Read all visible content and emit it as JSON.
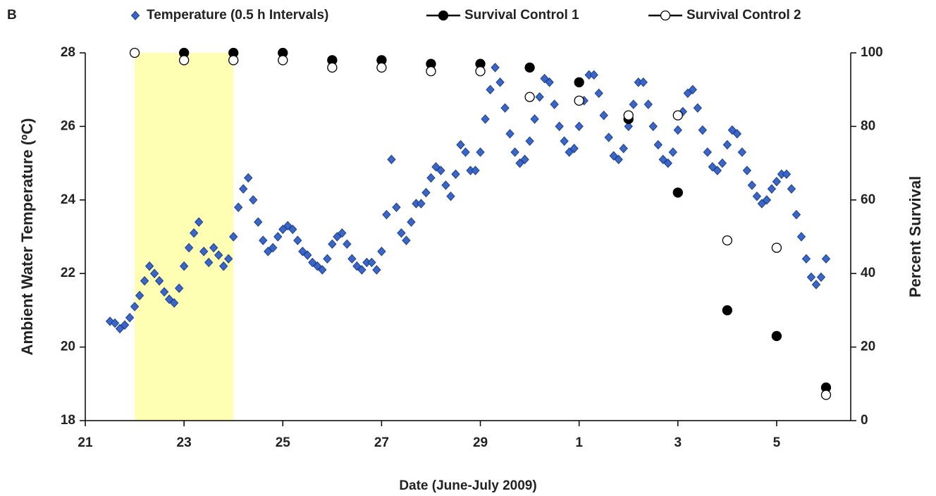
{
  "chart_data": {
    "type": "scatter",
    "panel_label": "B",
    "x_label": "Date  (June-July 2009)",
    "y_label": "Ambient  Water  Temperature (ºC)",
    "y2_label": "Percent  Survival",
    "legend": "top",
    "xlim": [
      21,
      36.5
    ],
    "xticks": [
      21,
      23,
      25,
      27,
      29,
      {
        "value": 31,
        "label": "1"
      },
      {
        "value": 33,
        "label": "3"
      },
      {
        "value": 35,
        "label": "5"
      }
    ],
    "ylim": [
      18,
      28
    ],
    "yticks": [
      18,
      20,
      22,
      24,
      26,
      28
    ],
    "y2lim": [
      0,
      100
    ],
    "y2ticks": [
      0,
      20,
      40,
      60,
      80,
      100
    ],
    "shaded_region": [
      22,
      24
    ],
    "shaded_color": "#ffffb3",
    "series": [
      {
        "name": "Temperature (0.5 h Intervals)",
        "color": "#3a66c8",
        "marker": "diamond",
        "x": [
          21.5,
          21.6,
          21.7,
          21.8,
          21.9,
          22.0,
          22.1,
          22.2,
          22.3,
          22.4,
          22.5,
          22.6,
          22.7,
          22.8,
          22.9,
          23.0,
          23.1,
          23.2,
          23.3,
          23.4,
          23.5,
          23.6,
          23.7,
          23.8,
          23.9,
          24.0,
          24.1,
          24.2,
          24.3,
          24.4,
          24.5,
          24.6,
          24.7,
          24.8,
          24.9,
          25.0,
          25.1,
          25.2,
          25.3,
          25.4,
          25.5,
          25.6,
          25.7,
          25.8,
          25.9,
          26.0,
          26.1,
          26.2,
          26.3,
          26.4,
          26.5,
          26.6,
          26.7,
          26.8,
          26.9,
          27.0,
          27.1,
          27.2,
          27.3,
          27.4,
          27.5,
          27.6,
          27.7,
          27.8,
          27.9,
          28.0,
          28.1,
          28.2,
          28.3,
          28.4,
          28.5,
          28.6,
          28.7,
          28.8,
          28.9,
          29.0,
          29.1,
          29.2,
          29.3,
          29.4,
          29.5,
          29.6,
          29.7,
          29.8,
          29.9,
          30.0,
          30.1,
          30.2,
          30.3,
          30.4,
          30.5,
          30.6,
          30.7,
          30.8,
          30.9,
          31.0,
          31.1,
          31.2,
          31.3,
          31.4,
          31.5,
          31.6,
          31.7,
          31.8,
          31.9,
          32.0,
          32.1,
          32.2,
          32.3,
          32.4,
          32.5,
          32.6,
          32.7,
          32.8,
          32.9,
          33.0,
          33.1,
          33.2,
          33.3,
          33.4,
          33.5,
          33.6,
          33.7,
          33.8,
          33.9,
          34.0,
          34.1,
          34.2,
          34.3,
          34.4,
          34.5,
          34.6,
          34.7,
          34.8,
          34.9,
          35.0,
          35.1,
          35.2,
          35.3,
          35.4,
          35.5,
          35.6,
          35.7,
          35.8,
          35.9,
          36.0
        ],
        "values": [
          20.7,
          20.65,
          20.5,
          20.6,
          20.8,
          21.1,
          21.4,
          21.8,
          22.2,
          22.0,
          21.8,
          21.5,
          21.3,
          21.2,
          21.6,
          22.2,
          22.7,
          23.1,
          23.4,
          22.6,
          22.3,
          22.7,
          22.5,
          22.2,
          22.4,
          23.0,
          23.8,
          24.3,
          24.6,
          24.0,
          23.4,
          22.9,
          22.6,
          22.7,
          23.0,
          23.2,
          23.3,
          23.2,
          22.9,
          22.6,
          22.5,
          22.3,
          22.2,
          22.1,
          22.4,
          22.8,
          23.0,
          23.1,
          22.8,
          22.4,
          22.2,
          22.1,
          22.3,
          22.3,
          22.1,
          22.6,
          23.6,
          25.1,
          23.8,
          23.1,
          22.9,
          23.4,
          23.9,
          23.9,
          24.2,
          24.6,
          24.9,
          24.8,
          24.4,
          24.1,
          24.7,
          25.5,
          25.3,
          24.8,
          24.8,
          25.3,
          26.2,
          27.0,
          27.6,
          27.2,
          26.5,
          25.8,
          25.3,
          25.0,
          25.1,
          25.6,
          26.2,
          26.8,
          27.3,
          27.2,
          26.6,
          26.0,
          25.6,
          25.3,
          25.4,
          26.0,
          26.7,
          27.4,
          27.4,
          26.9,
          26.3,
          25.7,
          25.2,
          25.1,
          25.4,
          26.0,
          26.6,
          27.2,
          27.2,
          26.6,
          26.0,
          25.5,
          25.1,
          25.0,
          25.3,
          25.9,
          26.4,
          26.9,
          27.0,
          26.5,
          25.9,
          25.3,
          24.9,
          24.8,
          25.0,
          25.5,
          25.9,
          25.8,
          25.3,
          24.8,
          24.4,
          24.1,
          23.9,
          24.0,
          24.3,
          24.5,
          24.7,
          24.7,
          24.3,
          23.6,
          23.0,
          22.4,
          21.9,
          21.7,
          21.9,
          22.4
        ]
      },
      {
        "name": "Survival Control 1",
        "color": "#000000",
        "marker": "filled-circle",
        "axis": "y2",
        "x": [
          23,
          24,
          25,
          26,
          27,
          28,
          29,
          30,
          31,
          32,
          33,
          34,
          35,
          36
        ],
        "values": [
          100,
          100,
          100,
          98,
          98,
          97,
          97,
          96,
          92,
          82,
          62,
          30,
          23,
          9
        ]
      },
      {
        "name": "Survival Control 2",
        "color": "#000000",
        "marker": "open-circle",
        "axis": "y2",
        "x": [
          22,
          23,
          24,
          25,
          26,
          27,
          28,
          29,
          30,
          31,
          32,
          33,
          34,
          35,
          36
        ],
        "values": [
          100,
          98,
          98,
          98,
          96,
          96,
          95,
          95,
          88,
          87,
          83,
          83,
          49,
          47,
          7
        ]
      }
    ]
  }
}
